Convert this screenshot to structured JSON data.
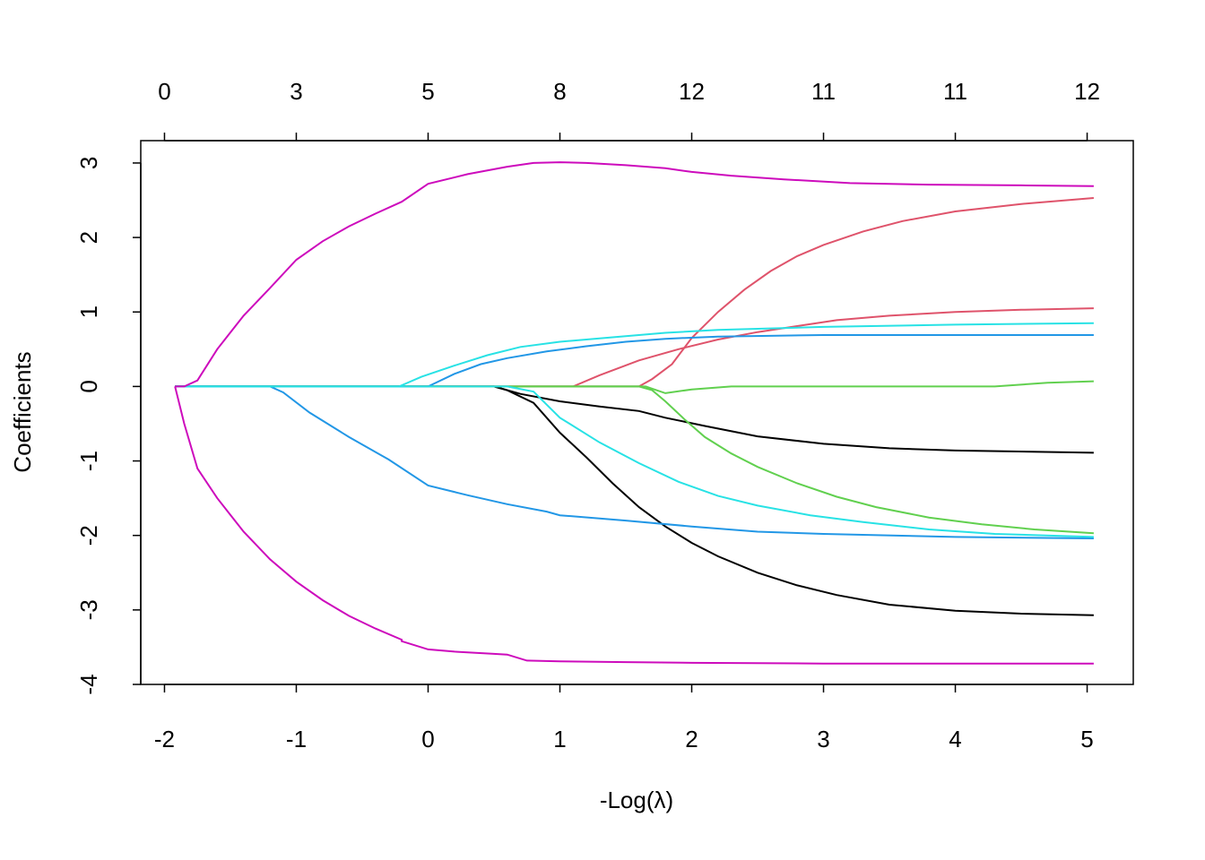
{
  "chart_data": {
    "type": "line",
    "title": "",
    "xlabel": "-Log(λ)",
    "ylabel": "Coefficients",
    "xlim": [
      -2.18,
      5.35
    ],
    "ylim": [
      -4.0,
      3.3
    ],
    "grid": false,
    "legend": "none",
    "x_ticks": [
      -2,
      -1,
      0,
      1,
      2,
      3,
      4,
      5
    ],
    "y_ticks": [
      -4,
      -3,
      -2,
      -1,
      0,
      1,
      2,
      3
    ],
    "top_axis": {
      "positions": [
        -2,
        -1,
        0,
        1,
        2,
        3,
        4,
        5
      ],
      "labels": [
        "0",
        "3",
        "5",
        "8",
        "12",
        "11",
        "11",
        "12"
      ]
    },
    "series": [
      {
        "color": "#000000",
        "points": [
          [
            -1.92,
            0
          ],
          [
            0.5,
            0
          ],
          [
            0.6,
            -0.05
          ],
          [
            0.8,
            -0.22
          ],
          [
            1.0,
            -0.62
          ],
          [
            1.2,
            -0.95
          ],
          [
            1.4,
            -1.3
          ],
          [
            1.6,
            -1.62
          ],
          [
            1.8,
            -1.88
          ],
          [
            2.0,
            -2.1
          ],
          [
            2.2,
            -2.28
          ],
          [
            2.5,
            -2.5
          ],
          [
            2.8,
            -2.67
          ],
          [
            3.1,
            -2.8
          ],
          [
            3.5,
            -2.93
          ],
          [
            4.0,
            -3.01
          ],
          [
            4.5,
            -3.05
          ],
          [
            5.05,
            -3.07
          ]
        ]
      },
      {
        "color": "#000000",
        "points": [
          [
            -1.92,
            0
          ],
          [
            0.5,
            0
          ],
          [
            0.7,
            -0.1
          ],
          [
            1.0,
            -0.2
          ],
          [
            1.3,
            -0.27
          ],
          [
            1.6,
            -0.33
          ],
          [
            1.8,
            -0.42
          ],
          [
            2.1,
            -0.53
          ],
          [
            2.5,
            -0.67
          ],
          [
            3.0,
            -0.77
          ],
          [
            3.5,
            -0.83
          ],
          [
            4.0,
            -0.86
          ],
          [
            5.05,
            -0.89
          ]
        ]
      },
      {
        "color": "#DF536B",
        "points": [
          [
            -1.92,
            0
          ],
          [
            1.6,
            0
          ],
          [
            1.7,
            0.1
          ],
          [
            1.85,
            0.3
          ],
          [
            2.0,
            0.65
          ],
          [
            2.2,
            1.0
          ],
          [
            2.4,
            1.3
          ],
          [
            2.6,
            1.55
          ],
          [
            2.8,
            1.75
          ],
          [
            3.0,
            1.9
          ],
          [
            3.3,
            2.08
          ],
          [
            3.6,
            2.22
          ],
          [
            4.0,
            2.35
          ],
          [
            4.5,
            2.45
          ],
          [
            5.05,
            2.53
          ]
        ]
      },
      {
        "color": "#DF536B",
        "points": [
          [
            -1.92,
            0
          ],
          [
            1.1,
            0
          ],
          [
            1.3,
            0.15
          ],
          [
            1.6,
            0.35
          ],
          [
            1.9,
            0.5
          ],
          [
            2.2,
            0.63
          ],
          [
            2.5,
            0.73
          ],
          [
            2.8,
            0.81
          ],
          [
            3.1,
            0.89
          ],
          [
            3.5,
            0.95
          ],
          [
            4.0,
            1.0
          ],
          [
            4.5,
            1.03
          ],
          [
            5.05,
            1.05
          ]
        ]
      },
      {
        "color": "#61D04F",
        "points": [
          [
            -1.92,
            0
          ],
          [
            1.6,
            0
          ],
          [
            1.7,
            -0.05
          ],
          [
            1.8,
            -0.2
          ],
          [
            1.95,
            -0.45
          ],
          [
            2.1,
            -0.68
          ],
          [
            2.3,
            -0.9
          ],
          [
            2.5,
            -1.08
          ],
          [
            2.8,
            -1.3
          ],
          [
            3.1,
            -1.48
          ],
          [
            3.4,
            -1.62
          ],
          [
            3.8,
            -1.76
          ],
          [
            4.2,
            -1.85
          ],
          [
            4.6,
            -1.92
          ],
          [
            5.05,
            -1.97
          ]
        ]
      },
      {
        "color": "#61D04F",
        "points": [
          [
            -1.92,
            0
          ],
          [
            1.65,
            0
          ],
          [
            1.8,
            -0.09
          ],
          [
            2.0,
            -0.04
          ],
          [
            2.3,
            0
          ],
          [
            3.0,
            0
          ],
          [
            4.3,
            0
          ],
          [
            4.7,
            0.05
          ],
          [
            5.05,
            0.07
          ]
        ]
      },
      {
        "color": "#2297E6",
        "points": [
          [
            -1.92,
            0
          ],
          [
            -1.2,
            0
          ],
          [
            -1.1,
            -0.08
          ],
          [
            -0.9,
            -0.35
          ],
          [
            -0.6,
            -0.68
          ],
          [
            -0.3,
            -0.98
          ],
          [
            0.0,
            -1.33
          ],
          [
            0.3,
            -1.46
          ],
          [
            0.6,
            -1.58
          ],
          [
            0.9,
            -1.68
          ],
          [
            1.0,
            -1.73
          ],
          [
            1.5,
            -1.8
          ],
          [
            2.0,
            -1.88
          ],
          [
            2.5,
            -1.95
          ],
          [
            3.0,
            -1.98
          ],
          [
            4.0,
            -2.02
          ],
          [
            5.05,
            -2.04
          ]
        ]
      },
      {
        "color": "#2297E6",
        "points": [
          [
            -1.92,
            0
          ],
          [
            0.0,
            0
          ],
          [
            0.2,
            0.17
          ],
          [
            0.4,
            0.3
          ],
          [
            0.6,
            0.38
          ],
          [
            0.9,
            0.47
          ],
          [
            1.2,
            0.54
          ],
          [
            1.5,
            0.6
          ],
          [
            1.8,
            0.64
          ],
          [
            2.2,
            0.67
          ],
          [
            3.0,
            0.69
          ],
          [
            4.0,
            0.69
          ],
          [
            5.05,
            0.69
          ]
        ]
      },
      {
        "color": "#28E2E5",
        "points": [
          [
            -1.92,
            0
          ],
          [
            -0.22,
            0
          ],
          [
            -0.05,
            0.13
          ],
          [
            0.2,
            0.28
          ],
          [
            0.45,
            0.42
          ],
          [
            0.7,
            0.53
          ],
          [
            1.0,
            0.6
          ],
          [
            1.4,
            0.66
          ],
          [
            1.8,
            0.72
          ],
          [
            2.2,
            0.76
          ],
          [
            3.0,
            0.8
          ],
          [
            4.0,
            0.83
          ],
          [
            5.05,
            0.85
          ]
        ]
      },
      {
        "color": "#28E2E5",
        "points": [
          [
            -1.92,
            0
          ],
          [
            0.6,
            0
          ],
          [
            0.8,
            -0.07
          ],
          [
            1.0,
            -0.42
          ],
          [
            1.3,
            -0.75
          ],
          [
            1.6,
            -1.03
          ],
          [
            1.9,
            -1.28
          ],
          [
            2.2,
            -1.47
          ],
          [
            2.5,
            -1.6
          ],
          [
            2.9,
            -1.73
          ],
          [
            3.3,
            -1.82
          ],
          [
            3.8,
            -1.92
          ],
          [
            4.3,
            -1.98
          ],
          [
            5.05,
            -2.02
          ]
        ]
      },
      {
        "color": "#CD0BBC",
        "points": [
          [
            -1.92,
            0
          ],
          [
            -1.85,
            0
          ],
          [
            -1.75,
            0.08
          ],
          [
            -1.6,
            0.5
          ],
          [
            -1.4,
            0.95
          ],
          [
            -1.2,
            1.32
          ],
          [
            -1.0,
            1.7
          ],
          [
            -0.8,
            1.95
          ],
          [
            -0.6,
            2.15
          ],
          [
            -0.4,
            2.32
          ],
          [
            -0.2,
            2.48
          ],
          [
            0.0,
            2.72
          ],
          [
            0.3,
            2.85
          ],
          [
            0.6,
            2.95
          ],
          [
            0.8,
            3.0
          ],
          [
            1.0,
            3.01
          ],
          [
            1.2,
            3.0
          ],
          [
            1.5,
            2.97
          ],
          [
            1.8,
            2.93
          ],
          [
            2.0,
            2.88
          ],
          [
            2.3,
            2.83
          ],
          [
            2.7,
            2.78
          ],
          [
            3.2,
            2.73
          ],
          [
            3.8,
            2.71
          ],
          [
            4.5,
            2.7
          ],
          [
            5.05,
            2.69
          ]
        ]
      },
      {
        "color": "#CD0BBC",
        "points": [
          [
            -1.92,
            0
          ],
          [
            -1.85,
            -0.5
          ],
          [
            -1.75,
            -1.1
          ],
          [
            -1.6,
            -1.5
          ],
          [
            -1.4,
            -1.95
          ],
          [
            -1.2,
            -2.32
          ],
          [
            -1.0,
            -2.62
          ],
          [
            -0.8,
            -2.87
          ],
          [
            -0.6,
            -3.08
          ],
          [
            -0.4,
            -3.25
          ],
          [
            -0.2,
            -3.4
          ],
          [
            -0.2,
            -3.42
          ],
          [
            0.0,
            -3.53
          ],
          [
            0.2,
            -3.56
          ],
          [
            0.5,
            -3.59
          ],
          [
            0.6,
            -3.6
          ],
          [
            0.75,
            -3.68
          ],
          [
            1.0,
            -3.69
          ],
          [
            1.5,
            -3.7
          ],
          [
            2.0,
            -3.71
          ],
          [
            3.0,
            -3.72
          ],
          [
            4.0,
            -3.72
          ],
          [
            5.05,
            -3.72
          ]
        ]
      }
    ]
  }
}
